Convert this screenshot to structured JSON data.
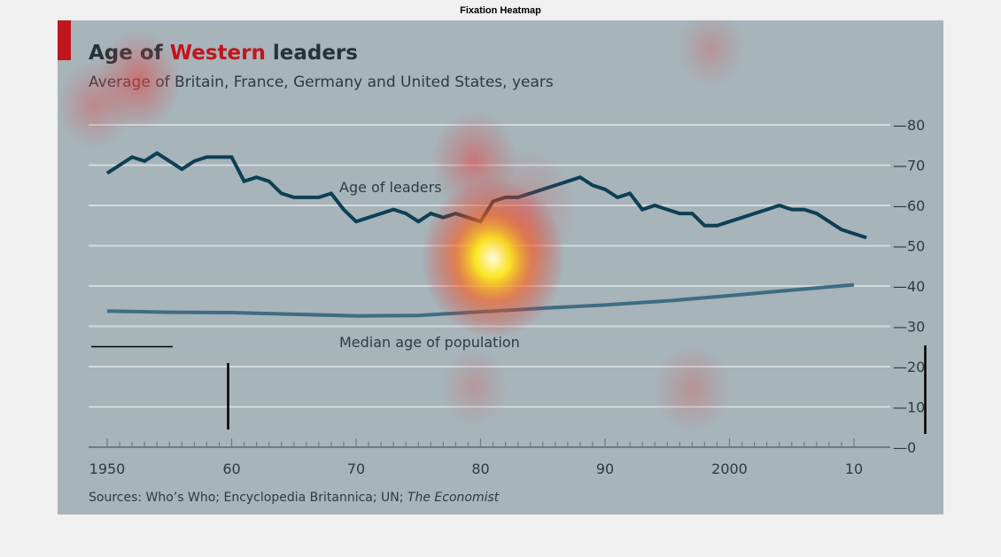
{
  "window": {
    "title": "Fixation Heatmap"
  },
  "colors": {
    "background": "#a7b4ba",
    "grid": "#d4dadd",
    "leaders_line": "#0d3f55",
    "population_line": "#3f6c82",
    "accent": "#c0161d",
    "text": "#2c3b42"
  },
  "chart_data": {
    "type": "line",
    "title_parts": [
      "Age of ",
      "Western",
      " leaders"
    ],
    "subtitle": "Average of Britain, France, Germany and United States, years",
    "source_prefix": "Sources: Who’s Who; Encyclopedia Britannica; UN; ",
    "source_italic": "The Economist",
    "ylim": [
      0,
      80
    ],
    "yticks": [
      0,
      10,
      20,
      30,
      40,
      50,
      60,
      70,
      80
    ],
    "xlim": [
      1950,
      2010
    ],
    "xticks": [
      {
        "value": 1950,
        "label": "1950"
      },
      {
        "value": 1960,
        "label": "60"
      },
      {
        "value": 1970,
        "label": "70"
      },
      {
        "value": 1980,
        "label": "80"
      },
      {
        "value": 1990,
        "label": "90"
      },
      {
        "value": 2000,
        "label": "2000"
      },
      {
        "value": 2010,
        "label": "10"
      }
    ],
    "grid": true,
    "series": [
      {
        "name": "Age of leaders",
        "x": [
          1950,
          1951,
          1952,
          1953,
          1954,
          1955,
          1956,
          1957,
          1958,
          1959,
          1960,
          1961,
          1962,
          1963,
          1964,
          1965,
          1966,
          1967,
          1968,
          1969,
          1970,
          1971,
          1972,
          1973,
          1974,
          1975,
          1976,
          1977,
          1978,
          1979,
          1980,
          1981,
          1982,
          1983,
          1984,
          1985,
          1986,
          1987,
          1988,
          1989,
          1990,
          1991,
          1992,
          1993,
          1994,
          1995,
          1996,
          1997,
          1998,
          1999,
          2000,
          2001,
          2002,
          2003,
          2004,
          2005,
          2006,
          2007,
          2008,
          2009,
          2010,
          2011
        ],
        "values": [
          68,
          70,
          72,
          71,
          73,
          71,
          69,
          71,
          72,
          72,
          72,
          66,
          67,
          66,
          63,
          62,
          62,
          62,
          63,
          59,
          56,
          57,
          58,
          59,
          58,
          56,
          58,
          57,
          58,
          57,
          56,
          61,
          62,
          62,
          63,
          64,
          65,
          66,
          67,
          65,
          64,
          62,
          63,
          59,
          60,
          59,
          58,
          58,
          55,
          55,
          56,
          57,
          58,
          59,
          60,
          59,
          59,
          58,
          56,
          54,
          53,
          52
        ]
      },
      {
        "name": "Median age of population",
        "x": [
          1950,
          1955,
          1960,
          1965,
          1970,
          1975,
          1980,
          1985,
          1990,
          1995,
          2000,
          2005,
          2010
        ],
        "values": [
          33.8,
          33.5,
          33.4,
          33.0,
          32.6,
          32.7,
          33.6,
          34.5,
          35.3,
          36.3,
          37.6,
          39.0,
          40.3
        ]
      }
    ],
    "fixations": [
      {
        "x": 1981,
        "y": 47,
        "strength": 1.0,
        "spread": 1.0
      },
      {
        "x": 1979.5,
        "y": 71,
        "strength": 0.55,
        "spread": 0.9
      },
      {
        "x": 1952.5,
        "y": 91,
        "strength": 0.6,
        "spread": 0.9
      },
      {
        "x": 1949,
        "y": 85,
        "strength": 0.4,
        "spread": 0.8
      },
      {
        "x": 1997,
        "y": 14.5,
        "strength": 0.3,
        "spread": 0.8
      },
      {
        "x": 1979.5,
        "y": 15,
        "strength": 0.25,
        "spread": 0.7
      },
      {
        "x": 1998.5,
        "y": 99,
        "strength": 0.28,
        "spread": 0.7
      },
      {
        "x": 1983.5,
        "y": 59,
        "strength": 0.3,
        "spread": 1.1
      }
    ]
  }
}
